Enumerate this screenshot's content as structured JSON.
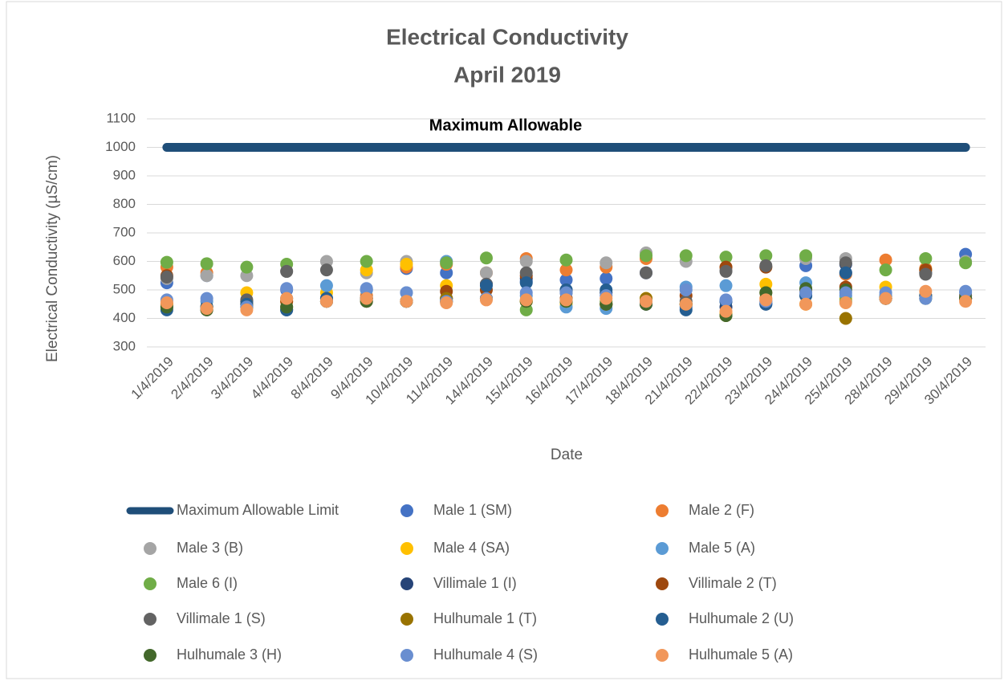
{
  "chart_data": {
    "type": "scatter",
    "title": "Electrical Conductivity",
    "subtitle": "April 2019",
    "annotation": "Maximum Allowable",
    "x_label": "Date",
    "y_label": "Electrical Conductivity (µS/cm)",
    "categories": [
      "1/4/2019",
      "2/4/2019",
      "3/4/2019",
      "4/4/2019",
      "8/4/2019",
      "9/4/2019",
      "10/4/2019",
      "11/4/2019",
      "14/4/2019",
      "15/4/2019",
      "16/4/2019",
      "17/4/2019",
      "18/4/2019",
      "21/4/2019",
      "22/4/2019",
      "23/4/2019",
      "24/4/2019",
      "25/4/2019",
      "28/4/2019",
      "29/4/2019",
      "30/4/2019"
    ],
    "ylim": [
      300,
      1100
    ],
    "yticks": [
      300,
      400,
      500,
      600,
      700,
      800,
      900,
      1000,
      1100
    ],
    "grid": true,
    "legend": "bottom",
    "series": [
      {
        "name": "Maximum Allowable Limit",
        "type": "line",
        "color": "#1f4e79",
        "values": [
          1000,
          1000,
          1000,
          1000,
          1000,
          1000,
          1000,
          1000,
          1000,
          1000,
          1000,
          1000,
          1000,
          1000,
          1000,
          1000,
          1000,
          1000,
          1000,
          1000,
          1000
        ]
      },
      {
        "name": "Male 1 (SM)",
        "color": "#4472c4",
        "values": [
          525,
          550,
          460,
          500,
          470,
          500,
          575,
          560,
          520,
          530,
          535,
          540,
          560,
          440,
          460,
          455,
          585,
          560,
          475,
          480,
          625
        ]
      },
      {
        "name": "Male 2 (F)",
        "color": "#ed7d31",
        "values": [
          580,
          560,
          440,
          470,
          460,
          480,
          580,
          590,
          560,
          610,
          570,
          580,
          610,
          450,
          580,
          470,
          450,
          555,
          605,
          575,
          470
        ]
      },
      {
        "name": "Male 3 (B)",
        "color": "#a5a5a5",
        "values": [
          540,
          550,
          550,
          565,
          600,
          560,
          600,
          600,
          560,
          600,
          470,
          595,
          630,
          600,
          570,
          580,
          610,
          610,
          480,
          560,
          600
        ]
      },
      {
        "name": "Male 4 (SA)",
        "color": "#ffc000",
        "values": [
          450,
          440,
          490,
          460,
          490,
          570,
          590,
          515,
          470,
          460,
          450,
          450,
          470,
          450,
          420,
          520,
          450,
          470,
          510,
          570,
          480
        ]
      },
      {
        "name": "Male 5 (A)",
        "color": "#5b9bd5",
        "values": [
          460,
          460,
          440,
          470,
          515,
          500,
          490,
          600,
          470,
          480,
          440,
          435,
          460,
          510,
          515,
          460,
          525,
          480,
          480,
          470,
          490
        ]
      },
      {
        "name": "Male 6 (I)",
        "color": "#70ad47",
        "values": [
          597,
          592,
          580,
          590,
          460,
          600,
          460,
          595,
          612,
          430,
          605,
          460,
          620,
          620,
          615,
          620,
          620,
          460,
          570,
          610,
          595
        ]
      },
      {
        "name": "Villimale 1 (I)",
        "color": "#264478",
        "values": [
          440,
          440,
          460,
          430,
          470,
          470,
          460,
          470,
          520,
          540,
          490,
          490,
          450,
          450,
          440,
          450,
          480,
          590,
          470,
          560,
          470
        ]
      },
      {
        "name": "Villimale 2 (T)",
        "color": "#9e480e",
        "values": [
          550,
          430,
          450,
          460,
          460,
          460,
          460,
          495,
          500,
          550,
          470,
          450,
          450,
          480,
          580,
          580,
          500,
          510,
          470,
          570,
          470
        ]
      },
      {
        "name": "Villimale 1 (S)",
        "color": "#636363",
        "values": [
          545,
          440,
          465,
          565,
          570,
          470,
          460,
          470,
          520,
          560,
          500,
          450,
          560,
          460,
          565,
          585,
          500,
          595,
          470,
          555,
          480
        ]
      },
      {
        "name": "Hulhumale 1 (T)",
        "color": "#997300",
        "values": [
          450,
          440,
          450,
          440,
          460,
          470,
          460,
          470,
          470,
          460,
          460,
          450,
          470,
          450,
          410,
          490,
          500,
          400,
          470,
          480,
          470
        ]
      },
      {
        "name": "Hulhumale 2 (U)",
        "color": "#255e91",
        "values": [
          430,
          440,
          450,
          430,
          470,
          470,
          460,
          460,
          515,
          525,
          500,
          500,
          450,
          430,
          460,
          450,
          480,
          560,
          470,
          480,
          470
        ]
      },
      {
        "name": "Hulhumale 3 (H)",
        "color": "#43682b",
        "values": [
          440,
          430,
          440,
          440,
          460,
          460,
          460,
          460,
          470,
          460,
          460,
          450,
          450,
          450,
          410,
          490,
          505,
          500,
          470,
          470,
          470
        ]
      },
      {
        "name": "Hulhumale 4 (S)",
        "color": "#698ed0",
        "values": [
          465,
          470,
          440,
          505,
          460,
          505,
          490,
          460,
          470,
          490,
          490,
          480,
          460,
          500,
          465,
          460,
          490,
          490,
          490,
          470,
          495
        ]
      },
      {
        "name": "Hulhumale 5 (A)",
        "color": "#f1975a",
        "values": [
          455,
          435,
          430,
          470,
          460,
          470,
          460,
          455,
          465,
          465,
          465,
          470,
          460,
          450,
          425,
          465,
          450,
          455,
          470,
          495,
          460
        ]
      }
    ]
  }
}
